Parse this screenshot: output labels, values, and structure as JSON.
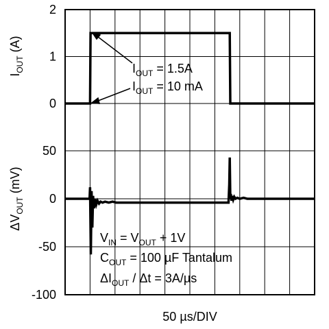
{
  "chart_data": {
    "type": "line",
    "xlabel": "50 µs/DIV",
    "x_divisions": 10,
    "panels": [
      {
        "ylabel": {
          "main": "I",
          "sub": "OUT",
          "unit": " (A)"
        },
        "ylim": [
          0,
          2
        ],
        "yticks": [
          {
            "value": 0,
            "label": "0"
          },
          {
            "value": 1,
            "label": "1"
          },
          {
            "value": 2,
            "label": "2"
          }
        ],
        "series": [
          {
            "x": [
              0,
              1.0,
              1.02,
              6.6,
              6.62,
              10
            ],
            "y": [
              0,
              0,
              1.5,
              1.5,
              0,
              0
            ]
          }
        ]
      },
      {
        "ylabel": {
          "pre": "ΔV",
          "sub": "OUT",
          "unit": " (mV)"
        },
        "ylim": [
          -100,
          50
        ],
        "yticks": [
          {
            "value": 50,
            "label": "50"
          },
          {
            "value": 0,
            "label": "0"
          },
          {
            "value": -50,
            "label": "-50"
          },
          {
            "value": -100,
            "label": "-100"
          }
        ],
        "series": [
          {
            "x": [
              0,
              0.98,
              1.0,
              1.03,
              1.06,
              1.09,
              1.12,
              1.16,
              1.2,
              1.25,
              1.3,
              1.36,
              1.42,
              1.5,
              1.6,
              1.75,
              1.9,
              2.05,
              6.55,
              6.58,
              6.6,
              6.62,
              6.64,
              6.67,
              6.7,
              6.74,
              6.78,
              6.83,
              6.9,
              7.0,
              7.15,
              7.3,
              7.45,
              7.6,
              10
            ],
            "y": [
              0,
              0,
              12,
              -58,
              8,
              -30,
              3,
              -10,
              0,
              -6,
              -2,
              -5,
              -3,
              -4,
              -3,
              -4,
              -3,
              -4,
              -4,
              15,
              43,
              0,
              5,
              -2,
              3,
              -1,
              2,
              0,
              1,
              0,
              1,
              0,
              0,
              0,
              0
            ]
          }
        ]
      }
    ],
    "annotations": {
      "iout_high": {
        "pre": "I",
        "sub": "OUT",
        "post": " = 1.5A"
      },
      "iout_low": {
        "pre": "I",
        "sub": "OUT",
        "post": " = 10 mA"
      },
      "vin": {
        "a": "V",
        "a_sub": "IN",
        "b": " = V",
        "b_sub": "OUT",
        "c": " + 1V"
      },
      "cout": {
        "a": "C",
        "a_sub": "OUT",
        "b": " = 100 µF Tantalum"
      },
      "slew": {
        "a": "ΔI",
        "a_sub": "OUT",
        "b": " / Δt = 3A/µs"
      }
    }
  }
}
